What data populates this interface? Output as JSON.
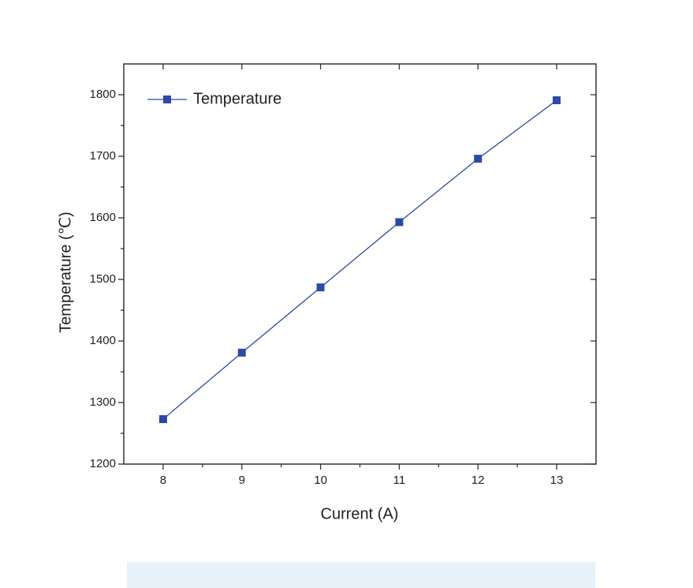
{
  "chart_data": {
    "type": "line",
    "x_label": "Current (A)",
    "y_label": "Temperature (℃)",
    "x": [
      8,
      9,
      10,
      11,
      12,
      13
    ],
    "series": [
      {
        "name": "Temperature",
        "color": "#2b4aa6",
        "values": [
          1273,
          1381,
          1487,
          1593,
          1696,
          1791
        ]
      }
    ],
    "xlim": [
      7.5,
      13.5
    ],
    "ylim": [
      1200,
      1850
    ],
    "xticks": [
      8,
      9,
      10,
      11,
      12,
      13
    ],
    "yticks": [
      1200,
      1300,
      1400,
      1500,
      1600,
      1700,
      1800
    ],
    "legend": "upper left",
    "grid": false
  }
}
